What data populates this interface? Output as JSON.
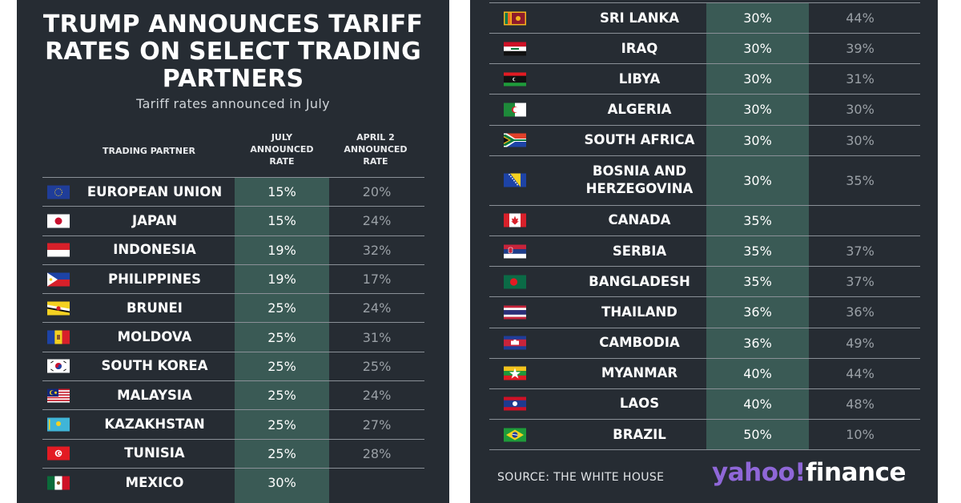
{
  "chart_data": {
    "type": "table",
    "title": "TRUMP ANNOUNCES TARIFF RATES ON SELECT TRADING PARTNERS",
    "subtitle": "Tariff rates announced in July",
    "columns": [
      "TRADING PARTNER",
      "JULY ANNOUNCED RATE",
      "APRIL 2 ANNOUNCED RATE"
    ],
    "rows": [
      {
        "partner": "EUROPEAN UNION",
        "july": "15%",
        "april": "20%",
        "flag": "eu"
      },
      {
        "partner": "JAPAN",
        "july": "15%",
        "april": "24%",
        "flag": "japan"
      },
      {
        "partner": "INDONESIA",
        "july": "19%",
        "april": "32%",
        "flag": "indonesia"
      },
      {
        "partner": "PHILIPPINES",
        "july": "19%",
        "april": "17%",
        "flag": "philippines"
      },
      {
        "partner": "BRUNEI",
        "july": "25%",
        "april": "24%",
        "flag": "brunei"
      },
      {
        "partner": "MOLDOVA",
        "july": "25%",
        "april": "31%",
        "flag": "moldova"
      },
      {
        "partner": "SOUTH KOREA",
        "july": "25%",
        "april": "25%",
        "flag": "south-korea"
      },
      {
        "partner": "MALAYSIA",
        "july": "25%",
        "april": "24%",
        "flag": "malaysia"
      },
      {
        "partner": "KAZAKHSTAN",
        "july": "25%",
        "april": "27%",
        "flag": "kazakhstan"
      },
      {
        "partner": "TUNISIA",
        "july": "25%",
        "april": "28%",
        "flag": "tunisia"
      },
      {
        "partner": "MEXICO",
        "july": "30%",
        "april": "",
        "flag": "mexico"
      },
      {
        "partner": "SRI LANKA",
        "july": "30%",
        "april": "44%",
        "flag": "sri-lanka"
      },
      {
        "partner": "IRAQ",
        "july": "30%",
        "april": "39%",
        "flag": "iraq"
      },
      {
        "partner": "LIBYA",
        "july": "30%",
        "april": "31%",
        "flag": "libya"
      },
      {
        "partner": "ALGERIA",
        "july": "30%",
        "april": "30%",
        "flag": "algeria"
      },
      {
        "partner": "SOUTH AFRICA",
        "july": "30%",
        "april": "30%",
        "flag": "south-africa"
      },
      {
        "partner": "BOSNIA AND HERZEGOVINA",
        "july": "30%",
        "april": "35%",
        "flag": "bosnia"
      },
      {
        "partner": "CANADA",
        "july": "35%",
        "april": "",
        "flag": "canada"
      },
      {
        "partner": "SERBIA",
        "july": "35%",
        "april": "37%",
        "flag": "serbia"
      },
      {
        "partner": "BANGLADESH",
        "july": "35%",
        "april": "37%",
        "flag": "bangladesh"
      },
      {
        "partner": "THAILAND",
        "july": "36%",
        "april": "36%",
        "flag": "thailand"
      },
      {
        "partner": "CAMBODIA",
        "july": "36%",
        "april": "49%",
        "flag": "cambodia"
      },
      {
        "partner": "MYANMAR",
        "july": "40%",
        "april": "44%",
        "flag": "myanmar"
      },
      {
        "partner": "LAOS",
        "july": "40%",
        "april": "48%",
        "flag": "laos"
      },
      {
        "partner": "BRAZIL",
        "july": "50%",
        "april": "10%",
        "flag": "brazil"
      }
    ],
    "highlight_color": "#3a5a55",
    "background_color": "#262c33"
  },
  "header_lines": {
    "july": [
      "JULY",
      "ANNOUNCED",
      "RATE"
    ],
    "april": [
      "APRIL 2",
      "ANNOUNCED",
      "RATE"
    ]
  },
  "footer": {
    "source": "SOURCE: THE WHITE HOUSE",
    "logo_brand": "yahoo!",
    "logo_product": "finance"
  }
}
